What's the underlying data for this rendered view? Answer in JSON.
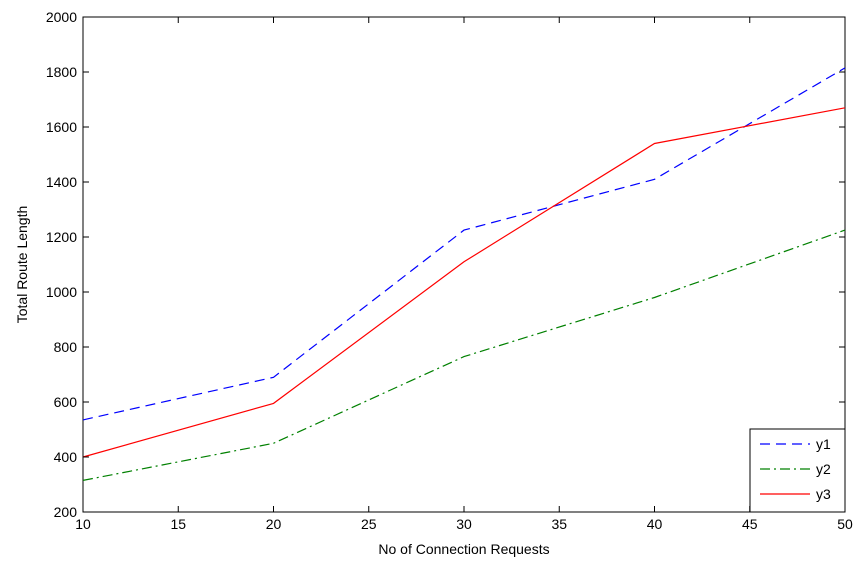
{
  "chart_data": {
    "type": "line",
    "title": "",
    "xlabel": "No of Connection Requests",
    "ylabel": "Total Route Length",
    "xlim": [
      10,
      50
    ],
    "ylim": [
      200,
      2000
    ],
    "xticks": [
      10,
      15,
      20,
      25,
      30,
      35,
      40,
      45,
      50
    ],
    "yticks": [
      200,
      400,
      600,
      800,
      1000,
      1200,
      1400,
      1600,
      1800,
      2000
    ],
    "x": [
      10,
      20,
      30,
      40,
      50
    ],
    "grid": false,
    "legend_position": "bottom-right",
    "series": [
      {
        "name": "y1",
        "values": [
          535,
          690,
          1225,
          1410,
          1815
        ],
        "color": "#0000ff",
        "style": "dashed"
      },
      {
        "name": "y2",
        "values": [
          315,
          450,
          765,
          980,
          1225
        ],
        "color": "#008000",
        "style": "dash-dot"
      },
      {
        "name": "y3",
        "values": [
          400,
          595,
          1110,
          1540,
          1670
        ],
        "color": "#ff0000",
        "style": "solid"
      }
    ]
  }
}
